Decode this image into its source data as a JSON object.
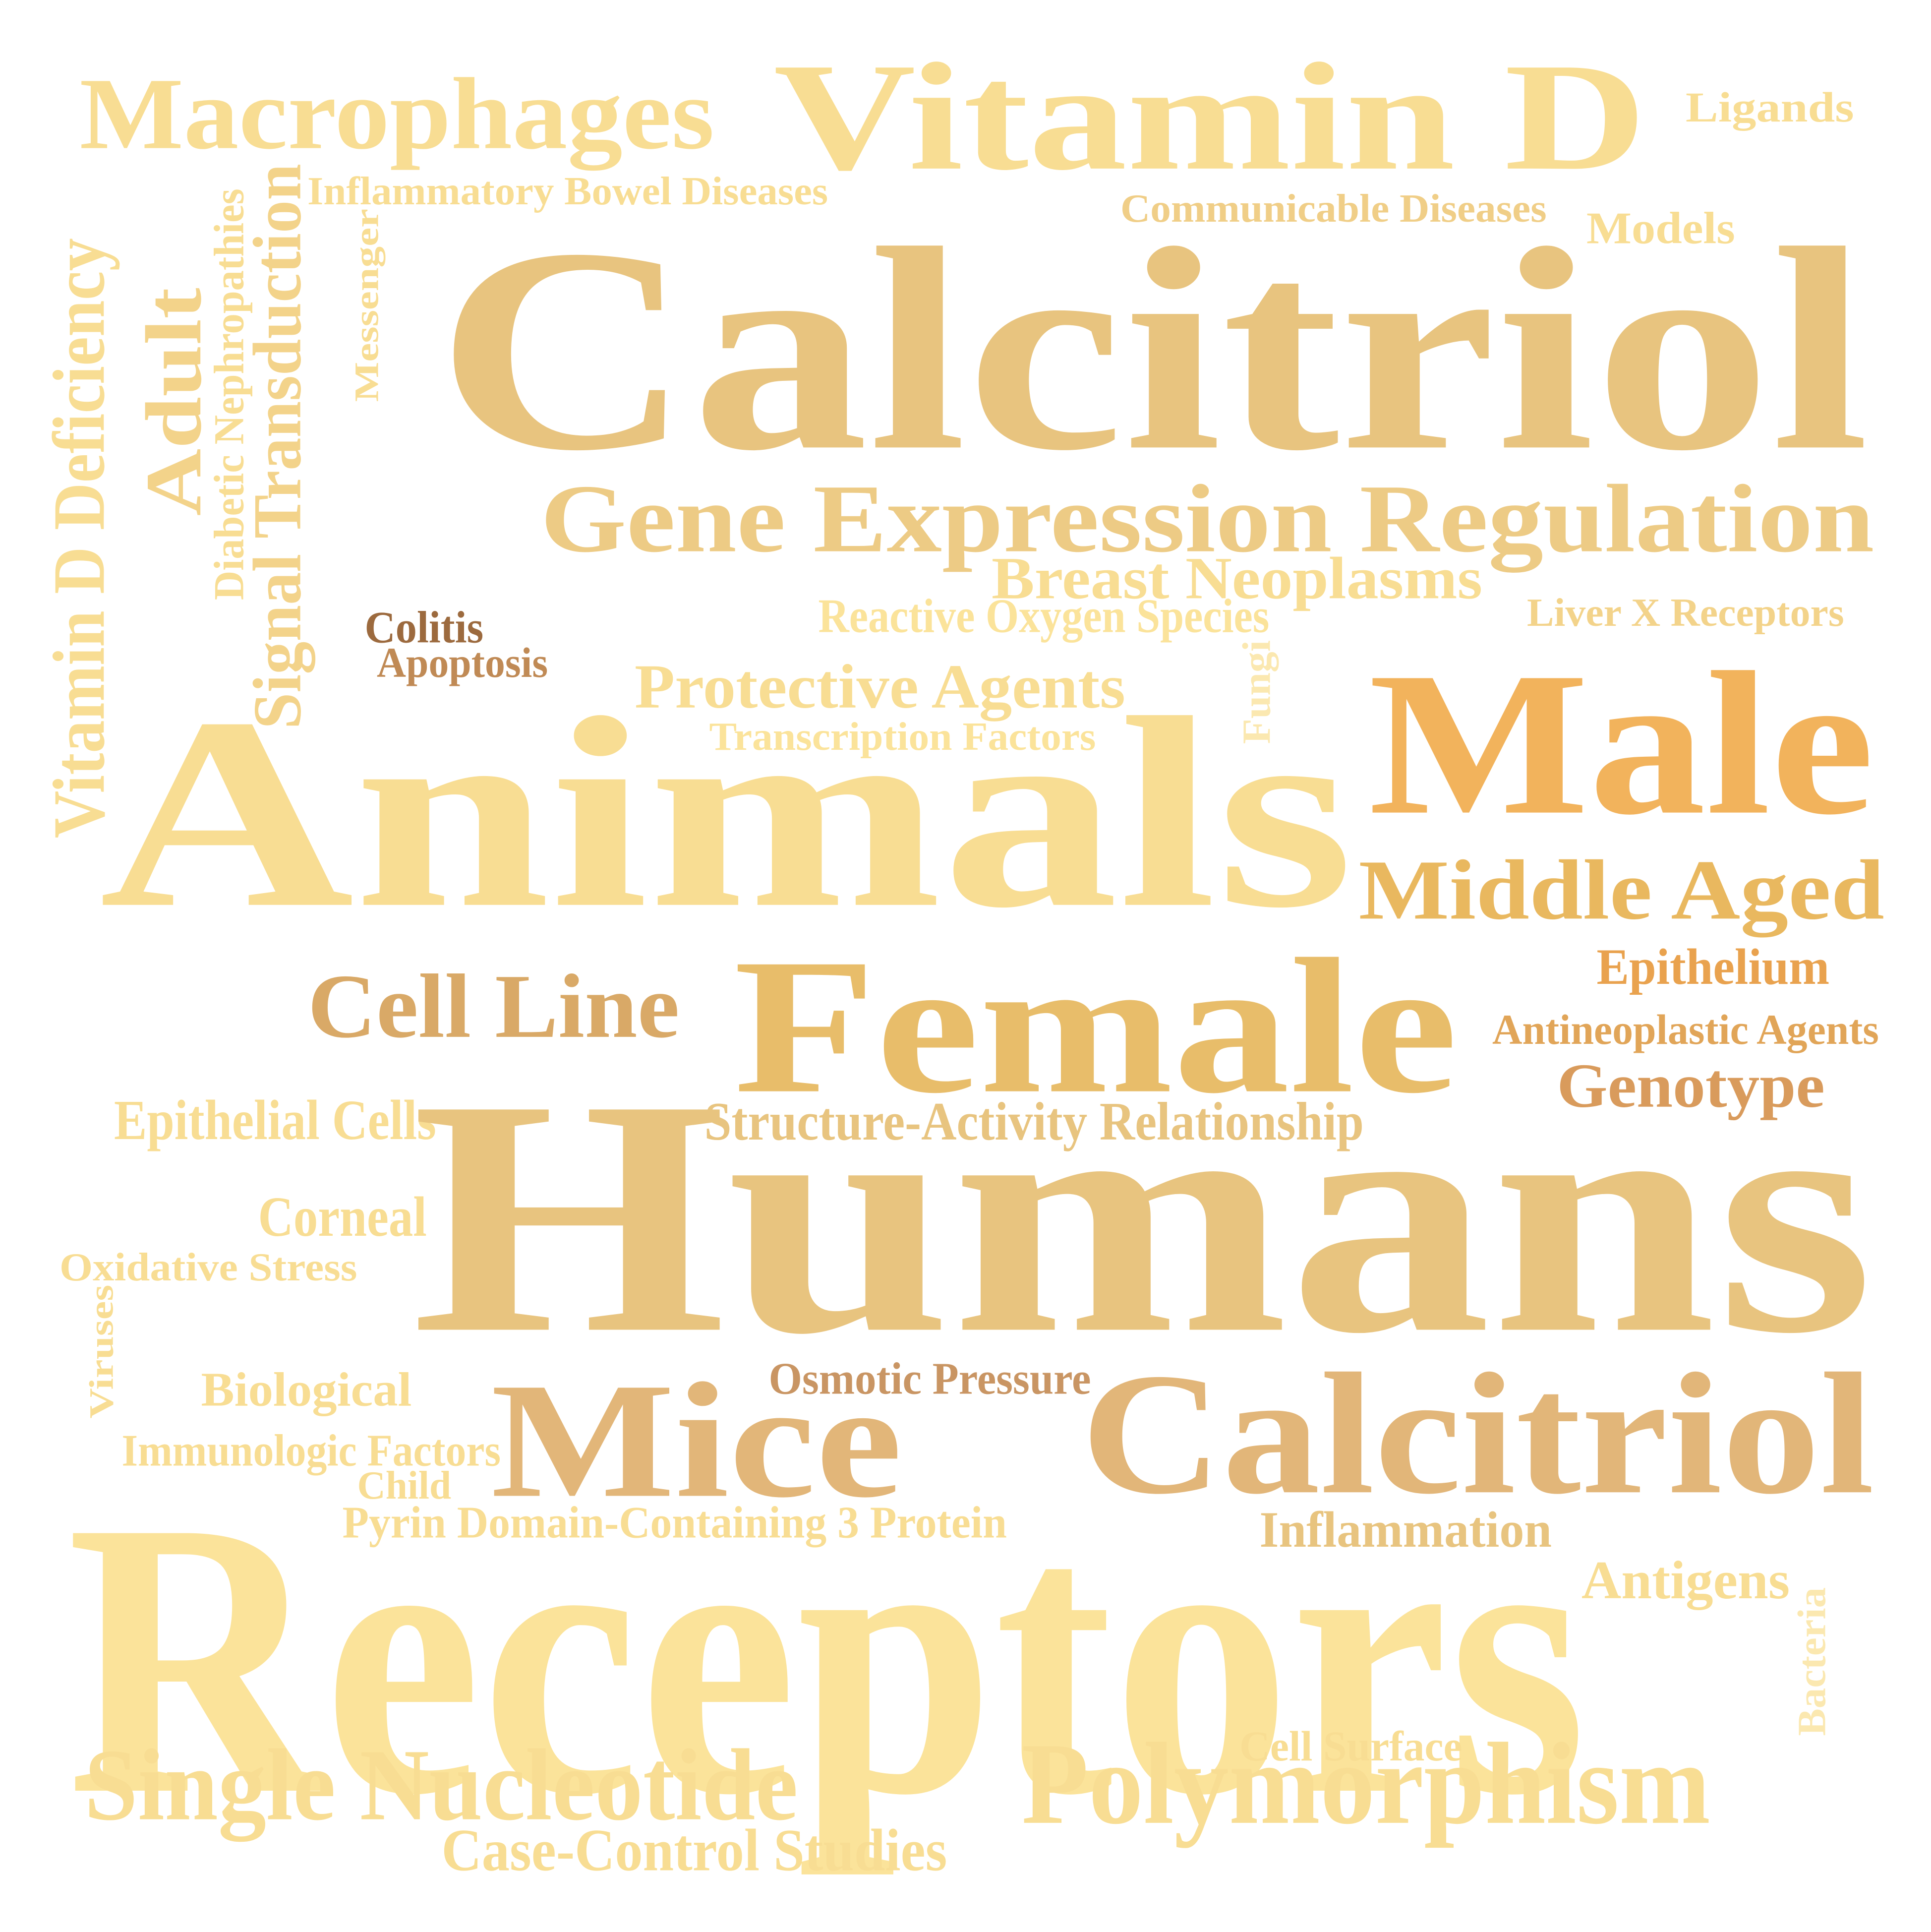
{
  "words": [
    {
      "text": "Vitamin D",
      "color": "#F8DD93",
      "vertical": false
    },
    {
      "text": "Macrophages",
      "color": "#F8DD93",
      "vertical": false
    },
    {
      "text": "Ligands",
      "color": "#F8DD93",
      "vertical": false
    },
    {
      "text": "Inflammatory Bowel Diseases",
      "color": "#F8DD93",
      "vertical": false
    },
    {
      "text": "Communicable Diseases",
      "color": "#F0CE87",
      "vertical": false
    },
    {
      "text": "Models",
      "color": "#F8DD93",
      "vertical": false
    },
    {
      "text": "Calcitriol",
      "color": "#E8C47F",
      "vertical": false
    },
    {
      "text": "Vitamin D Deficiency",
      "color": "#F8DD93",
      "vertical": true
    },
    {
      "text": "Adult",
      "color": "#F3D38A",
      "vertical": true
    },
    {
      "text": "Diabetic Nephropathies",
      "color": "#F8DD93",
      "vertical": true
    },
    {
      "text": "Signal Transduction",
      "color": "#F3D38A",
      "vertical": true
    },
    {
      "text": "Messenger",
      "color": "#F8DD93",
      "vertical": true
    },
    {
      "text": "Gene Expression Regulation",
      "color": "#EDCB85",
      "vertical": false
    },
    {
      "text": "Breast Neoplasms",
      "color": "#F8DD93",
      "vertical": false
    },
    {
      "text": "Reactive Oxygen Species",
      "color": "#FBE39A",
      "vertical": false
    },
    {
      "text": "Liver X Receptors",
      "color": "#F3D38A",
      "vertical": false
    },
    {
      "text": "Colitis",
      "color": "#9C6A3E",
      "vertical": false
    },
    {
      "text": "Apoptosis",
      "color": "#C08A55",
      "vertical": false
    },
    {
      "text": "Protective Agents",
      "color": "#F8DD93",
      "vertical": false
    },
    {
      "text": "Fungi",
      "color": "#FBE8B0",
      "vertical": true
    },
    {
      "text": "Transcription Factors",
      "color": "#FBE39A",
      "vertical": false
    },
    {
      "text": "Male",
      "color": "#F2B35C",
      "vertical": false
    },
    {
      "text": "Animals",
      "color": "#F8DD93",
      "vertical": false
    },
    {
      "text": "Middle Aged",
      "color": "#E9B85F",
      "vertical": false
    },
    {
      "text": "Epithelium",
      "color": "#E9A24E",
      "vertical": false
    },
    {
      "text": "Cell Line",
      "color": "#D9A967",
      "vertical": false
    },
    {
      "text": "Female",
      "color": "#E8BD6A",
      "vertical": false
    },
    {
      "text": "Antineoplastic Agents",
      "color": "#E1A558",
      "vertical": false
    },
    {
      "text": "Genotype",
      "color": "#D99B5C",
      "vertical": false
    },
    {
      "text": "Epithelial Cells",
      "color": "#F8DD93",
      "vertical": false
    },
    {
      "text": "Structure-Activity Relationship",
      "color": "#E8C47F",
      "vertical": false
    },
    {
      "text": "Humans",
      "color": "#E8C47F",
      "vertical": false
    },
    {
      "text": "Corneal",
      "color": "#F8DD93",
      "vertical": false
    },
    {
      "text": "Oxidative Stress",
      "color": "#F8DD93",
      "vertical": false
    },
    {
      "text": "Viruses",
      "color": "#F8DD93",
      "vertical": true
    },
    {
      "text": "Biological",
      "color": "#F8DD93",
      "vertical": false
    },
    {
      "text": "Osmotic Pressure",
      "color": "#C99563",
      "vertical": false
    },
    {
      "text": "Mice",
      "color": "#E2B679",
      "vertical": false
    },
    {
      "text": "Calcitriol",
      "color": "#E2B679",
      "vertical": false
    },
    {
      "text": "Immunologic Factors",
      "color": "#F8DD93",
      "vertical": false
    },
    {
      "text": "Child",
      "color": "#F8DD93",
      "vertical": false
    },
    {
      "text": "Pyrin Domain-Containing 3 Protein",
      "color": "#F8DD93",
      "vertical": false
    },
    {
      "text": "Inflammation",
      "color": "#E8C47F",
      "vertical": false
    },
    {
      "text": "Receptors",
      "color": "#FBE39A",
      "vertical": false
    },
    {
      "text": "Antigens",
      "color": "#F8DD93",
      "vertical": false
    },
    {
      "text": "Bacteria",
      "color": "#FBE8B0",
      "vertical": true
    },
    {
      "text": "Cell Surface",
      "color": "#F8DD93",
      "vertical": false
    },
    {
      "text": "Single Nucleotide",
      "color": "#F8DD93",
      "vertical": false
    },
    {
      "text": "Polymorphism",
      "color": "#F8DD93",
      "vertical": false
    },
    {
      "text": "Case-Control Studies",
      "color": "#F8DD93",
      "vertical": false
    }
  ]
}
